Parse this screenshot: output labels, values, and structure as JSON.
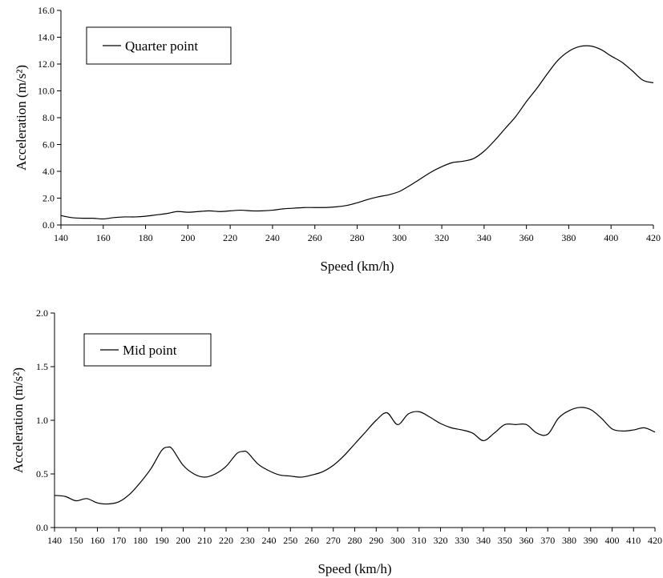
{
  "chart_data": [
    {
      "type": "line",
      "title": "",
      "xlabel": "Speed (km/h)",
      "ylabel": "Acceleration (m/s²)",
      "xlim": [
        140,
        420
      ],
      "ylim": [
        0,
        16
      ],
      "x_ticks": [
        "140",
        "160",
        "180",
        "200",
        "220",
        "240",
        "260",
        "280",
        "300",
        "320",
        "340",
        "360",
        "380",
        "400",
        "420"
      ],
      "y_ticks": [
        "0.0",
        "2.0",
        "4.0",
        "6.0",
        "8.0",
        "10.0",
        "12.0",
        "14.0",
        "16.0"
      ],
      "grid": false,
      "legend_position": "top-left",
      "series": [
        {
          "name": "Quarter point",
          "x": [
            140,
            145,
            150,
            155,
            160,
            165,
            170,
            175,
            180,
            185,
            190,
            195,
            200,
            205,
            210,
            215,
            220,
            225,
            230,
            235,
            240,
            245,
            250,
            255,
            260,
            265,
            270,
            275,
            280,
            285,
            290,
            295,
            300,
            305,
            310,
            315,
            320,
            325,
            330,
            335,
            340,
            345,
            350,
            355,
            360,
            365,
            370,
            375,
            380,
            385,
            390,
            395,
            400,
            405,
            410,
            415,
            420
          ],
          "y": [
            0.7,
            0.55,
            0.5,
            0.5,
            0.45,
            0.55,
            0.6,
            0.6,
            0.65,
            0.75,
            0.85,
            1.0,
            0.95,
            1.0,
            1.05,
            1.0,
            1.05,
            1.1,
            1.05,
            1.05,
            1.1,
            1.2,
            1.25,
            1.3,
            1.3,
            1.3,
            1.35,
            1.45,
            1.65,
            1.9,
            2.1,
            2.25,
            2.5,
            2.95,
            3.45,
            3.95,
            4.35,
            4.65,
            4.75,
            4.95,
            5.5,
            6.3,
            7.2,
            8.1,
            9.2,
            10.2,
            11.3,
            12.3,
            12.95,
            13.3,
            13.35,
            13.1,
            12.6,
            12.15,
            11.5,
            10.8,
            10.6
          ]
        }
      ]
    },
    {
      "type": "line",
      "title": "",
      "xlabel": "Speed (km/h)",
      "ylabel": "Acceleration (m/s²)",
      "xlim": [
        140,
        420
      ],
      "ylim": [
        0,
        2
      ],
      "x_ticks": [
        "140",
        "150",
        "160",
        "170",
        "180",
        "190",
        "200",
        "210",
        "220",
        "230",
        "240",
        "250",
        "260",
        "270",
        "280",
        "290",
        "300",
        "310",
        "320",
        "330",
        "340",
        "350",
        "360",
        "370",
        "380",
        "390",
        "400",
        "410",
        "420"
      ],
      "y_ticks": [
        "0.0",
        "0.5",
        "1.0",
        "1.5",
        "2.0"
      ],
      "grid": false,
      "legend_position": "top-left",
      "series": [
        {
          "name": "Mid point",
          "x": [
            140,
            145,
            150,
            155,
            160,
            165,
            170,
            175,
            180,
            185,
            190,
            193,
            195,
            200,
            205,
            210,
            215,
            220,
            225,
            228,
            230,
            235,
            240,
            245,
            250,
            255,
            260,
            265,
            270,
            275,
            280,
            285,
            290,
            295,
            300,
            305,
            310,
            315,
            320,
            325,
            330,
            335,
            340,
            345,
            350,
            355,
            360,
            365,
            370,
            375,
            380,
            385,
            390,
            395,
            400,
            405,
            410,
            415,
            420
          ],
          "y": [
            0.3,
            0.29,
            0.25,
            0.27,
            0.23,
            0.22,
            0.24,
            0.31,
            0.42,
            0.55,
            0.72,
            0.75,
            0.73,
            0.58,
            0.5,
            0.47,
            0.5,
            0.57,
            0.69,
            0.71,
            0.7,
            0.59,
            0.53,
            0.49,
            0.48,
            0.47,
            0.49,
            0.52,
            0.58,
            0.67,
            0.78,
            0.89,
            1.0,
            1.07,
            0.96,
            1.06,
            1.08,
            1.03,
            0.97,
            0.93,
            0.91,
            0.88,
            0.81,
            0.88,
            0.96,
            0.96,
            0.96,
            0.88,
            0.87,
            1.02,
            1.09,
            1.12,
            1.1,
            1.02,
            0.92,
            0.9,
            0.91,
            0.93,
            0.89
          ]
        }
      ]
    }
  ]
}
